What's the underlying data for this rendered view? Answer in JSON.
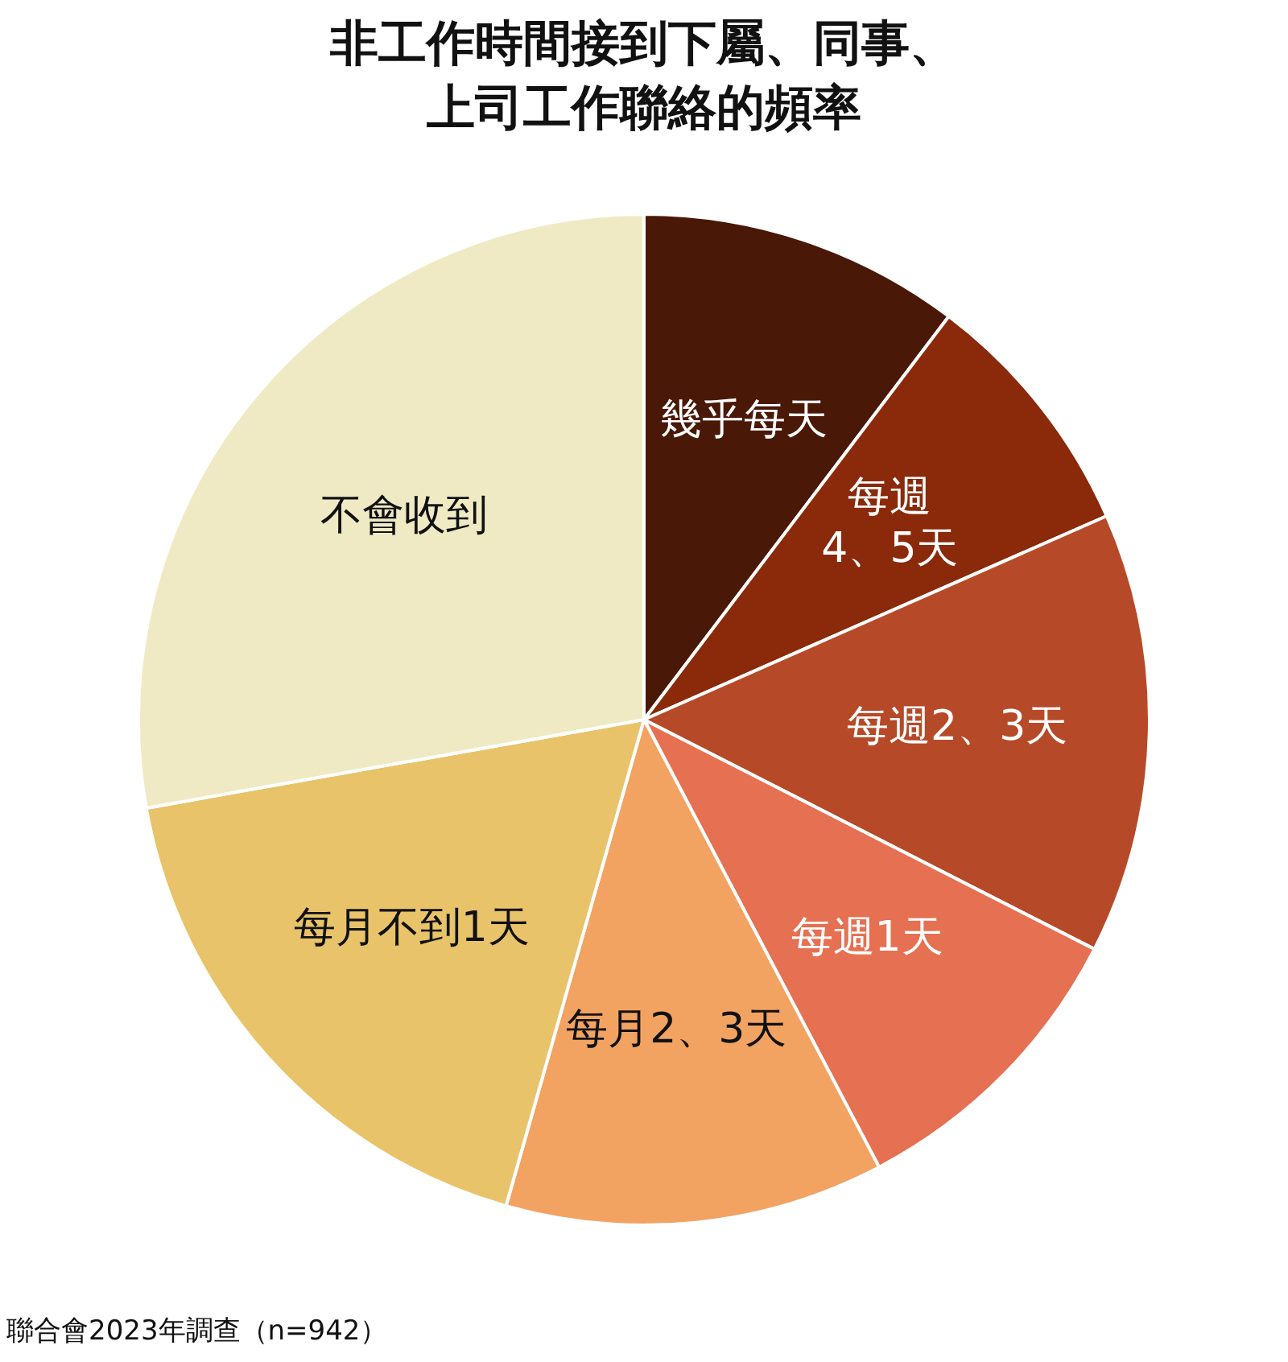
{
  "chart_data": {
    "type": "pie",
    "title": "非工作時間接到下屬、同事、上司工作聯絡的頻率",
    "categories": [
      "幾乎每天",
      "每週4、5天",
      "每週2、3天",
      "每週1天",
      "每月2、3天",
      "每月不到1天",
      "不會收到"
    ],
    "values": [
      10.3,
      8.1,
      14.1,
      9.8,
      12.1,
      17.8,
      27.8
    ],
    "colors": [
      "#4a1807",
      "#8a2a0a",
      "#b64a28",
      "#e67052",
      "#f2a362",
      "#e8c36a",
      "#f0eac4"
    ],
    "annotations": [
      "聯合會2023年調查（n=942）"
    ]
  }
}
